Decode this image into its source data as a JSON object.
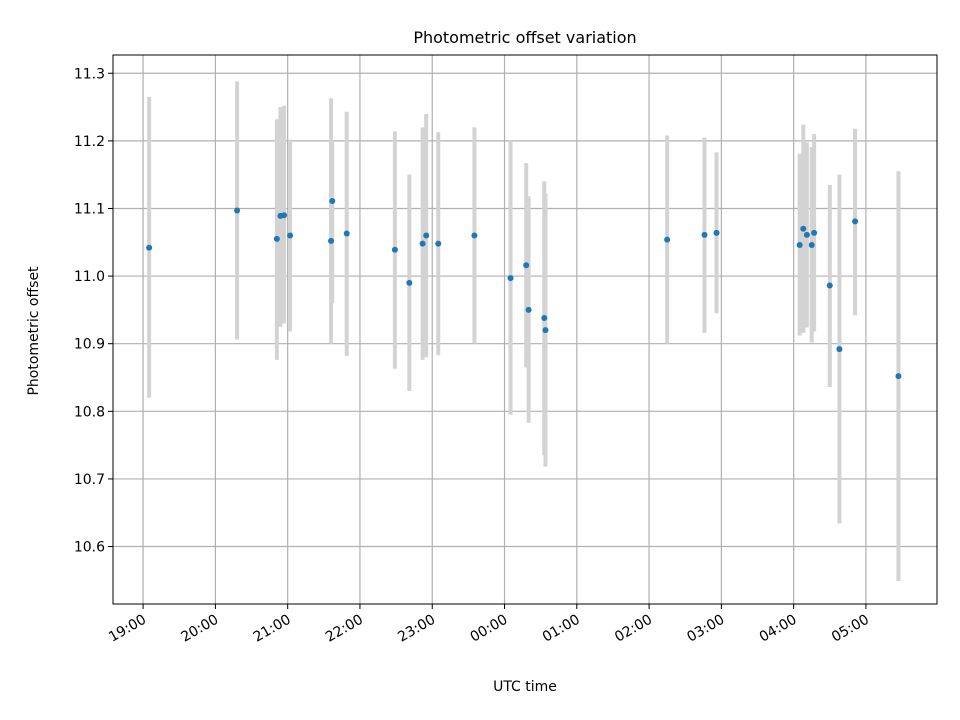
{
  "chart_data": {
    "type": "scatter",
    "title": "Photometric offset variation",
    "xlabel": "UTC time",
    "ylabel": "Photometric offset",
    "x_ticks": [
      "19:00",
      "20:00",
      "21:00",
      "22:00",
      "23:00",
      "00:00",
      "01:00",
      "02:00",
      "03:00",
      "04:00",
      "05:00"
    ],
    "y_ticks": [
      "10.6",
      "10.7",
      "10.8",
      "10.9",
      "11.0",
      "11.1",
      "11.2",
      "11.3"
    ],
    "xlim": [
      "18:35",
      "05:59"
    ],
    "ylim": [
      10.515,
      11.327
    ],
    "grid": true,
    "marker_color": "#1f77b4",
    "errorbar_color": "#d3d3d3",
    "points": [
      {
        "x": "19:05",
        "y": 11.042,
        "lo": 10.82,
        "hi": 11.265
      },
      {
        "x": "20:18",
        "y": 11.097,
        "lo": 10.906,
        "hi": 11.288
      },
      {
        "x": "20:51",
        "y": 11.055,
        "lo": 10.876,
        "hi": 11.232
      },
      {
        "x": "20:54",
        "y": 11.089,
        "lo": 10.925,
        "hi": 11.25
      },
      {
        "x": "20:57",
        "y": 11.09,
        "lo": 10.93,
        "hi": 11.252
      },
      {
        "x": "21:02",
        "y": 11.06,
        "lo": 10.918,
        "hi": 11.202
      },
      {
        "x": "21:36",
        "y": 11.052,
        "lo": 10.9,
        "hi": 11.263
      },
      {
        "x": "21:37",
        "y": 11.111,
        "lo": 10.96,
        "hi": 11.2
      },
      {
        "x": "21:49",
        "y": 11.063,
        "lo": 10.882,
        "hi": 11.243
      },
      {
        "x": "22:29",
        "y": 11.039,
        "lo": 10.863,
        "hi": 11.214
      },
      {
        "x": "22:41",
        "y": 10.99,
        "lo": 10.83,
        "hi": 11.15
      },
      {
        "x": "22:52",
        "y": 11.048,
        "lo": 10.876,
        "hi": 11.22
      },
      {
        "x": "22:55",
        "y": 11.06,
        "lo": 10.88,
        "hi": 11.24
      },
      {
        "x": "23:05",
        "y": 11.048,
        "lo": 10.883,
        "hi": 11.213
      },
      {
        "x": "23:35",
        "y": 11.06,
        "lo": 10.9,
        "hi": 11.22
      },
      {
        "x": "00:05",
        "y": 10.997,
        "lo": 10.795,
        "hi": 11.2
      },
      {
        "x": "00:18",
        "y": 11.016,
        "lo": 10.865,
        "hi": 11.167
      },
      {
        "x": "00:20",
        "y": 10.95,
        "lo": 10.783,
        "hi": 11.118
      },
      {
        "x": "00:33",
        "y": 10.938,
        "lo": 10.735,
        "hi": 11.14
      },
      {
        "x": "00:34",
        "y": 10.92,
        "lo": 10.718,
        "hi": 11.122
      },
      {
        "x": "02:15",
        "y": 11.054,
        "lo": 10.9,
        "hi": 11.208
      },
      {
        "x": "02:46",
        "y": 11.061,
        "lo": 10.916,
        "hi": 11.205
      },
      {
        "x": "02:56",
        "y": 11.064,
        "lo": 10.945,
        "hi": 11.183
      },
      {
        "x": "04:05",
        "y": 11.046,
        "lo": 10.912,
        "hi": 11.181
      },
      {
        "x": "04:08",
        "y": 11.07,
        "lo": 10.916,
        "hi": 11.224
      },
      {
        "x": "04:11",
        "y": 11.061,
        "lo": 10.924,
        "hi": 11.198
      },
      {
        "x": "04:15",
        "y": 11.046,
        "lo": 10.902,
        "hi": 11.191
      },
      {
        "x": "04:17",
        "y": 11.064,
        "lo": 10.918,
        "hi": 11.21
      },
      {
        "x": "04:30",
        "y": 10.986,
        "lo": 10.836,
        "hi": 11.135
      },
      {
        "x": "04:38",
        "y": 10.892,
        "lo": 10.634,
        "hi": 11.15
      },
      {
        "x": "04:51",
        "y": 11.081,
        "lo": 10.942,
        "hi": 11.218
      },
      {
        "x": "05:27",
        "y": 10.852,
        "lo": 10.549,
        "hi": 11.155
      }
    ]
  }
}
